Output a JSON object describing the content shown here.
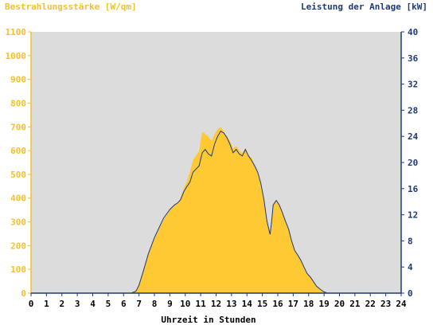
{
  "chart_data": {
    "type": "area",
    "title_left": "Bestrahlungsstärke [W/qm]",
    "title_right": "Leistung der Anlage [kW]",
    "xlabel": "Uhrzeit in Stunden",
    "xlim": [
      0,
      24
    ],
    "x_ticks": [
      "0",
      "1",
      "2",
      "3",
      "4",
      "5",
      "6",
      "7",
      "8",
      "9",
      "10",
      "11",
      "12",
      "13",
      "14",
      "15",
      "16",
      "17",
      "18",
      "19",
      "20",
      "21",
      "22",
      "23",
      "24"
    ],
    "y_left_lim": [
      0,
      1100
    ],
    "y_left_ticks": [
      "0",
      "100",
      "200",
      "300",
      "400",
      "500",
      "600",
      "700",
      "800",
      "900",
      "1000",
      "1100"
    ],
    "y_right_lim": [
      0,
      40
    ],
    "y_right_ticks": [
      "0",
      "4",
      "8",
      "12",
      "16",
      "20",
      "24",
      "28",
      "32",
      "36",
      "40"
    ],
    "grid": false,
    "colors": {
      "plot_background": "#dcdcdc",
      "irradiance_fill": "#ffc933",
      "power_line": "#1f3a78",
      "left_axis_text": "#f5c02a",
      "right_axis_text": "#1f3a78"
    },
    "series": [
      {
        "kind": "area",
        "axis": "left",
        "x": [
          0,
          6.5,
          6.8,
          7.0,
          7.3,
          7.6,
          8.0,
          8.3,
          8.6,
          9.0,
          9.3,
          9.5,
          9.7,
          9.9,
          10.1,
          10.3,
          10.5,
          10.7,
          10.9,
          11.0,
          11.1,
          11.3,
          11.5,
          11.7,
          11.9,
          12.1,
          12.3,
          12.5,
          12.7,
          12.9,
          13.1,
          13.3,
          13.5,
          13.7,
          13.9,
          14.1,
          14.3,
          14.5,
          14.7,
          14.9,
          15.1,
          15.3,
          15.5,
          15.6,
          15.7,
          15.9,
          16.1,
          16.3,
          16.5,
          16.7,
          16.9,
          17.1,
          17.3,
          17.5,
          17.7,
          17.9,
          18.1,
          18.3,
          18.5,
          18.8,
          19.0,
          19.2,
          24
        ],
        "y": [
          0,
          0,
          10,
          40,
          100,
          170,
          230,
          270,
          310,
          350,
          370,
          380,
          400,
          440,
          470,
          510,
          560,
          580,
          600,
          640,
          680,
          670,
          660,
          640,
          670,
          690,
          700,
          680,
          660,
          640,
          610,
          620,
          600,
          590,
          610,
          580,
          570,
          540,
          510,
          460,
          400,
          300,
          240,
          300,
          370,
          390,
          370,
          340,
          300,
          270,
          220,
          180,
          160,
          140,
          110,
          80,
          70,
          50,
          30,
          15,
          5,
          0,
          0
        ]
      },
      {
        "kind": "line",
        "axis": "right",
        "x": [
          0,
          6.5,
          6.8,
          7.0,
          7.3,
          7.6,
          8.0,
          8.3,
          8.6,
          9.0,
          9.3,
          9.5,
          9.7,
          9.9,
          10.1,
          10.3,
          10.5,
          10.7,
          10.9,
          11.0,
          11.1,
          11.3,
          11.5,
          11.7,
          11.9,
          12.1,
          12.3,
          12.5,
          12.7,
          12.9,
          13.1,
          13.3,
          13.5,
          13.7,
          13.9,
          14.1,
          14.3,
          14.5,
          14.7,
          14.9,
          15.1,
          15.3,
          15.5,
          15.6,
          15.7,
          15.9,
          16.1,
          16.3,
          16.5,
          16.7,
          16.9,
          17.1,
          17.3,
          17.5,
          17.7,
          17.9,
          18.1,
          18.3,
          18.5,
          18.8,
          19.0,
          19.2,
          24
        ],
        "y": [
          0,
          0,
          0.3,
          1.2,
          3.5,
          6.0,
          8.5,
          10.0,
          11.5,
          12.8,
          13.5,
          13.8,
          14.3,
          15.5,
          16.3,
          17.0,
          18.5,
          19.0,
          19.5,
          20.5,
          21.5,
          22.0,
          21.3,
          21.0,
          22.8,
          24.0,
          24.8,
          24.5,
          23.8,
          22.8,
          21.5,
          22.0,
          21.3,
          21.0,
          22.0,
          21.0,
          20.3,
          19.5,
          18.5,
          16.8,
          14.3,
          11.0,
          9.0,
          11.0,
          13.5,
          14.2,
          13.5,
          12.3,
          11.0,
          9.8,
          8.0,
          6.5,
          5.8,
          5.0,
          4.0,
          3.0,
          2.5,
          1.8,
          1.1,
          0.5,
          0.2,
          0,
          0
        ]
      }
    ]
  }
}
